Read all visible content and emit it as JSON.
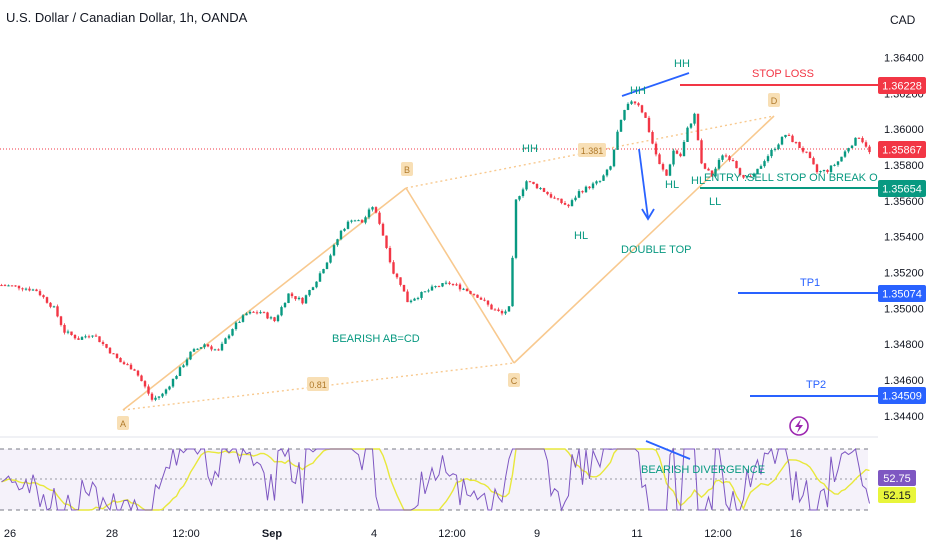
{
  "header": {
    "title": "U.S. Dollar / Canadian Dollar, 1h, OANDA",
    "currency": "CAD"
  },
  "colors": {
    "up": "#089981",
    "down": "#f23645",
    "red_line": "#f23645",
    "blue": "#2962ff",
    "teal": "#089981",
    "pattern": "#f8c98f",
    "rsi": "#7e57c2",
    "rsi_ma": "#e8e83b"
  },
  "chart_data": {
    "type": "candlestick",
    "price_axis": {
      "ticks": [
        "1.36400",
        "1.36200",
        "1.36000",
        "1.35800",
        "1.35600",
        "1.35400",
        "1.35200",
        "1.35000",
        "1.34800",
        "1.34600",
        "1.34400"
      ],
      "ylim": [
        1.3431,
        1.3652
      ]
    },
    "x_axis": {
      "ticks": [
        "26",
        "28",
        "12:00",
        "Sep",
        "4",
        "12:00",
        "9",
        "11",
        "12:00",
        "16"
      ]
    },
    "price_labels": [
      {
        "id": "stop",
        "text": "1.36228",
        "value": 1.36228,
        "color": "#f23645"
      },
      {
        "id": "current",
        "text": "1.35867",
        "value": 1.35867,
        "color": "#f23645"
      },
      {
        "id": "entry",
        "text": "1.35654",
        "value": 1.35654,
        "color": "#089981"
      },
      {
        "id": "tp1",
        "text": "1.35074",
        "value": 1.35074,
        "color": "#2962ff"
      },
      {
        "id": "tp2",
        "text": "1.34509",
        "value": 1.34509,
        "color": "#2962ff"
      }
    ],
    "price_path": [
      [
        0,
        1.3513
      ],
      [
        5,
        1.3512
      ],
      [
        10,
        1.351
      ],
      [
        15,
        1.35
      ],
      [
        18,
        1.3487
      ],
      [
        22,
        1.3483
      ],
      [
        26,
        1.3486
      ],
      [
        30,
        1.3478
      ],
      [
        34,
        1.347
      ],
      [
        38,
        1.3466
      ],
      [
        41,
        1.3456
      ],
      [
        43,
        1.3449
      ],
      [
        46,
        1.3452
      ],
      [
        50,
        1.3463
      ],
      [
        54,
        1.3475
      ],
      [
        58,
        1.348
      ],
      [
        62,
        1.3476
      ],
      [
        66,
        1.3489
      ],
      [
        70,
        1.3497
      ],
      [
        74,
        1.3498
      ],
      [
        78,
        1.3493
      ],
      [
        82,
        1.3508
      ],
      [
        86,
        1.3504
      ],
      [
        90,
        1.3516
      ],
      [
        94,
        1.353
      ],
      [
        97,
        1.3543
      ],
      [
        100,
        1.355
      ],
      [
        103,
        1.3548
      ],
      [
        106,
        1.3557
      ],
      [
        108,
        1.3548
      ],
      [
        110,
        1.3534
      ],
      [
        112,
        1.352
      ],
      [
        114,
        1.3514
      ],
      [
        116,
        1.3504
      ],
      [
        120,
        1.3508
      ],
      [
        124,
        1.3512
      ],
      [
        128,
        1.3514
      ],
      [
        132,
        1.3511
      ],
      [
        136,
        1.3507
      ],
      [
        140,
        1.35
      ],
      [
        143,
        1.3497
      ],
      [
        145,
        1.35
      ],
      [
        146,
        1.3527
      ],
      [
        147,
        1.356
      ],
      [
        150,
        1.3571
      ],
      [
        154,
        1.3567
      ],
      [
        158,
        1.3561
      ],
      [
        162,
        1.3557
      ],
      [
        165,
        1.3565
      ],
      [
        168,
        1.3568
      ],
      [
        171,
        1.3571
      ],
      [
        174,
        1.3579
      ],
      [
        176,
        1.3598
      ],
      [
        178,
        1.361
      ],
      [
        180,
        1.3616
      ],
      [
        182,
        1.3614
      ],
      [
        184,
        1.3606
      ],
      [
        186,
        1.3592
      ],
      [
        188,
        1.358
      ],
      [
        190,
        1.3574
      ],
      [
        192,
        1.3588
      ],
      [
        194,
        1.3585
      ],
      [
        196,
        1.36
      ],
      [
        198,
        1.3608
      ],
      [
        200,
        1.358
      ],
      [
        203,
        1.3574
      ],
      [
        206,
        1.3586
      ],
      [
        209,
        1.3583
      ],
      [
        212,
        1.3572
      ],
      [
        215,
        1.3574
      ],
      [
        218,
        1.3583
      ],
      [
        221,
        1.359
      ],
      [
        224,
        1.3597
      ],
      [
        227,
        1.3592
      ],
      [
        230,
        1.3586
      ],
      [
        233,
        1.3576
      ],
      [
        236,
        1.3577
      ],
      [
        239,
        1.3582
      ],
      [
        242,
        1.359
      ],
      [
        245,
        1.3596
      ],
      [
        247,
        1.3591
      ],
      [
        248,
        1.35867
      ]
    ],
    "annotations": [
      {
        "id": "A",
        "text": "A"
      },
      {
        "id": "B",
        "text": "B"
      },
      {
        "id": "C",
        "text": "C"
      },
      {
        "id": "D",
        "text": "D"
      },
      {
        "id": "ratio_bc",
        "text": "0.81"
      },
      {
        "id": "ratio_cd",
        "text": "1.381"
      },
      {
        "id": "bearish_abcd",
        "text": "BEARISH AB=CD"
      },
      {
        "id": "hh1",
        "text": "HH"
      },
      {
        "id": "hh2",
        "text": "HH"
      },
      {
        "id": "hh3",
        "text": "HH"
      },
      {
        "id": "hl1",
        "text": "HL"
      },
      {
        "id": "hl2",
        "text": "HL"
      },
      {
        "id": "hl3",
        "text": "HL"
      },
      {
        "id": "ll",
        "text": "LL"
      },
      {
        "id": "double_top",
        "text": "DOUBLE TOP"
      },
      {
        "id": "stop_loss",
        "text": "STOP LOSS"
      },
      {
        "id": "entry",
        "text": "ENTRY :SELL STOP ON BREAK OUT OF LL"
      },
      {
        "id": "tp1",
        "text": "TP1"
      },
      {
        "id": "tp2",
        "text": "TP2"
      },
      {
        "id": "bearish_div",
        "text": "BEARISH DIVERGENCE"
      }
    ],
    "rsi": {
      "labels": [
        "52.75",
        "52.15"
      ],
      "values": [
        52.75,
        52.15
      ]
    }
  }
}
